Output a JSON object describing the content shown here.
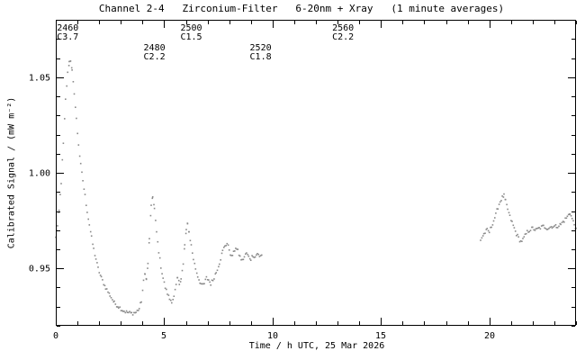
{
  "colors": {
    "background": "#ffffff",
    "axis": "#000000",
    "text": "#000000",
    "points": "#8a8a8a"
  },
  "chart_data": {
    "type": "scatter",
    "title": "Channel 2-4   Zirconium-Filter   6-20nm + Xray   (1 minute averages)",
    "xlabel": "Time / h UTC, 25 Mar 2026",
    "ylabel": "Calibrated Signal / (mW m⁻²)",
    "xlim": [
      0,
      24
    ],
    "ylim": [
      0.92,
      1.08
    ],
    "x_major_ticks": [
      0,
      5,
      10,
      15,
      20
    ],
    "x_minor_step": 1,
    "y_major_ticks": [
      0.95,
      1.0,
      1.05
    ],
    "y_minor_step": 0.01,
    "grid": false,
    "legend": "none",
    "annotations": [
      {
        "flare_id": "2460",
        "goes_class": "C3.7",
        "time": 0.05,
        "level": 1
      },
      {
        "flare_id": "2480",
        "goes_class": "C2.2",
        "time": 4.05,
        "level": 2
      },
      {
        "flare_id": "2500",
        "goes_class": "C1.5",
        "time": 5.75,
        "level": 1
      },
      {
        "flare_id": "2520",
        "goes_class": "C1.8",
        "time": 8.95,
        "level": 2
      },
      {
        "flare_id": "2560",
        "goes_class": "C2.2",
        "time": 12.75,
        "level": 1
      }
    ],
    "sample_step_h": 0.055,
    "jitter": 0.002,
    "series": [
      {
        "name": "segment-1",
        "points": [
          [
            0.0,
            0.966
          ],
          [
            0.08,
            0.972
          ],
          [
            0.15,
            0.98
          ],
          [
            0.25,
            0.995
          ],
          [
            0.35,
            1.015
          ],
          [
            0.45,
            1.038
          ],
          [
            0.55,
            1.052
          ],
          [
            0.62,
            1.058
          ],
          [
            0.68,
            1.059
          ],
          [
            0.75,
            1.053
          ],
          [
            0.85,
            1.042
          ],
          [
            0.95,
            1.028
          ],
          [
            1.05,
            1.015
          ],
          [
            1.15,
            1.004
          ],
          [
            1.25,
            0.996
          ],
          [
            1.35,
            0.988
          ],
          [
            1.45,
            0.98
          ],
          [
            1.55,
            0.973
          ],
          [
            1.65,
            0.966
          ],
          [
            1.75,
            0.96
          ],
          [
            1.85,
            0.955
          ],
          [
            1.95,
            0.95
          ],
          [
            2.1,
            0.945
          ],
          [
            2.3,
            0.94
          ],
          [
            2.5,
            0.936
          ],
          [
            2.7,
            0.932
          ],
          [
            2.9,
            0.93
          ],
          [
            3.1,
            0.928
          ],
          [
            3.3,
            0.927
          ],
          [
            3.5,
            0.9265
          ],
          [
            3.7,
            0.927
          ],
          [
            3.85,
            0.929
          ],
          [
            3.95,
            0.933
          ],
          [
            4.05,
            0.943
          ],
          [
            4.12,
            0.948
          ],
          [
            4.18,
            0.944
          ],
          [
            4.25,
            0.952
          ],
          [
            4.32,
            0.966
          ],
          [
            4.4,
            0.982
          ],
          [
            4.47,
            0.988
          ],
          [
            4.55,
            0.981
          ],
          [
            4.65,
            0.969
          ],
          [
            4.75,
            0.959
          ],
          [
            4.85,
            0.951
          ],
          [
            4.95,
            0.945
          ],
          [
            5.05,
            0.94
          ],
          [
            5.15,
            0.937
          ],
          [
            5.25,
            0.934
          ],
          [
            5.35,
            0.933
          ],
          [
            5.45,
            0.935
          ],
          [
            5.55,
            0.941
          ],
          [
            5.62,
            0.945
          ],
          [
            5.7,
            0.942
          ],
          [
            5.78,
            0.945
          ],
          [
            5.88,
            0.952
          ],
          [
            5.95,
            0.962
          ],
          [
            6.02,
            0.97
          ],
          [
            6.08,
            0.973
          ],
          [
            6.15,
            0.969
          ],
          [
            6.25,
            0.962
          ],
          [
            6.35,
            0.955
          ],
          [
            6.45,
            0.95
          ],
          [
            6.55,
            0.946
          ],
          [
            6.65,
            0.943
          ],
          [
            6.75,
            0.941
          ],
          [
            6.85,
            0.942
          ],
          [
            6.95,
            0.945
          ],
          [
            7.05,
            0.944
          ],
          [
            7.15,
            0.942
          ],
          [
            7.25,
            0.944
          ],
          [
            7.4,
            0.948
          ],
          [
            7.55,
            0.953
          ],
          [
            7.7,
            0.959
          ],
          [
            7.8,
            0.962
          ],
          [
            7.9,
            0.963
          ],
          [
            8.0,
            0.96
          ],
          [
            8.1,
            0.956
          ],
          [
            8.2,
            0.958
          ],
          [
            8.3,
            0.961
          ],
          [
            8.4,
            0.959
          ],
          [
            8.5,
            0.956
          ],
          [
            8.6,
            0.954
          ],
          [
            8.7,
            0.956
          ],
          [
            8.8,
            0.958
          ],
          [
            8.9,
            0.956
          ],
          [
            9.0,
            0.955
          ],
          [
            9.1,
            0.957
          ],
          [
            9.2,
            0.956
          ],
          [
            9.3,
            0.958
          ],
          [
            9.4,
            0.956
          ],
          [
            9.5,
            0.957
          ]
        ]
      },
      {
        "name": "segment-2",
        "points": [
          [
            19.6,
            0.965
          ],
          [
            19.75,
            0.968
          ],
          [
            19.9,
            0.97
          ],
          [
            20.0,
            0.969
          ],
          [
            20.1,
            0.972
          ],
          [
            20.2,
            0.975
          ],
          [
            20.3,
            0.978
          ],
          [
            20.4,
            0.982
          ],
          [
            20.5,
            0.985
          ],
          [
            20.6,
            0.987
          ],
          [
            20.68,
            0.988
          ],
          [
            20.75,
            0.985
          ],
          [
            20.85,
            0.981
          ],
          [
            20.95,
            0.977
          ],
          [
            21.05,
            0.974
          ],
          [
            21.15,
            0.971
          ],
          [
            21.25,
            0.968
          ],
          [
            21.35,
            0.966
          ],
          [
            21.45,
            0.964
          ],
          [
            21.55,
            0.965
          ],
          [
            21.65,
            0.967
          ],
          [
            21.75,
            0.969
          ],
          [
            21.85,
            0.97
          ],
          [
            22.0,
            0.971
          ],
          [
            22.15,
            0.97
          ],
          [
            22.3,
            0.971
          ],
          [
            22.5,
            0.972
          ],
          [
            22.7,
            0.971
          ],
          [
            22.9,
            0.972
          ],
          [
            23.1,
            0.972
          ],
          [
            23.3,
            0.973
          ],
          [
            23.45,
            0.975
          ],
          [
            23.6,
            0.977
          ],
          [
            23.72,
            0.979
          ],
          [
            23.82,
            0.976
          ],
          [
            23.92,
            0.973
          ],
          [
            24.0,
            0.971
          ]
        ]
      }
    ]
  }
}
